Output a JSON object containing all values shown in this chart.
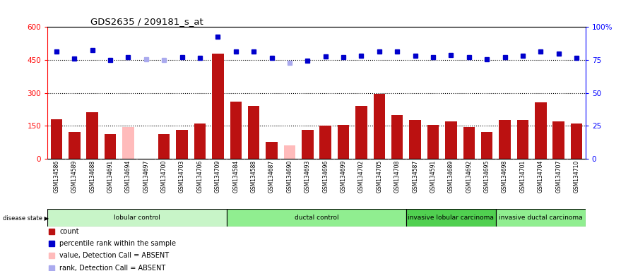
{
  "title": "GDS2635 / 209181_s_at",
  "samples": [
    "GSM134586",
    "GSM134589",
    "GSM134688",
    "GSM134691",
    "GSM134694",
    "GSM134697",
    "GSM134700",
    "GSM134703",
    "GSM134706",
    "GSM134709",
    "GSM134584",
    "GSM134588",
    "GSM134687",
    "GSM134690",
    "GSM134693",
    "GSM134696",
    "GSM134699",
    "GSM134702",
    "GSM134705",
    "GSM134708",
    "GSM134587",
    "GSM134591",
    "GSM134689",
    "GSM134692",
    "GSM134695",
    "GSM134698",
    "GSM134701",
    "GSM134704",
    "GSM134707",
    "GSM134710"
  ],
  "count_values": [
    180,
    120,
    210,
    110,
    145,
    0,
    110,
    130,
    160,
    480,
    260,
    240,
    75,
    60,
    130,
    150,
    155,
    240,
    295,
    200,
    175,
    155,
    170,
    145,
    120,
    175,
    175,
    255,
    170,
    160
  ],
  "absent_count_mask": [
    0,
    0,
    0,
    0,
    1,
    1,
    0,
    0,
    0,
    0,
    0,
    0,
    0,
    1,
    0,
    0,
    0,
    0,
    0,
    0,
    0,
    0,
    0,
    0,
    0,
    0,
    0,
    0,
    0,
    0
  ],
  "rank_values": [
    490,
    455,
    495,
    450,
    462,
    453,
    450,
    462,
    458,
    555,
    490,
    488,
    458,
    438,
    448,
    465,
    462,
    468,
    490,
    490,
    468,
    462,
    472,
    462,
    453,
    462,
    468,
    488,
    478,
    458
  ],
  "absent_rank_mask": [
    0,
    0,
    0,
    0,
    0,
    1,
    1,
    0,
    0,
    0,
    0,
    0,
    0,
    1,
    0,
    0,
    0,
    0,
    0,
    0,
    0,
    0,
    0,
    0,
    0,
    0,
    0,
    0,
    0,
    0
  ],
  "groups": [
    {
      "label": "lobular control",
      "start": 0,
      "end": 10,
      "color": "#c8f5c8"
    },
    {
      "label": "ductal control",
      "start": 10,
      "end": 20,
      "color": "#90ee90"
    },
    {
      "label": "invasive lobular carcinoma",
      "start": 20,
      "end": 25,
      "color": "#50d050"
    },
    {
      "label": "invasive ductal carcinoma",
      "start": 25,
      "end": 30,
      "color": "#90ee90"
    }
  ],
  "ylim_left": [
    0,
    600
  ],
  "ylim_right": [
    0,
    100
  ],
  "yticks_left": [
    0,
    150,
    300,
    450,
    600
  ],
  "yticks_right": [
    0,
    25,
    50,
    75,
    100
  ],
  "ytick_labels_right": [
    "0",
    "25",
    "50",
    "75",
    "100%"
  ],
  "hlines": [
    150,
    300,
    450
  ],
  "bar_color_present": "#bb1111",
  "bar_color_absent": "#ffbbbb",
  "dot_color_present": "#0000cc",
  "dot_color_absent": "#aaaaee",
  "bg_color": "#ffffff",
  "plot_bg": "#ffffff",
  "label_bg": "#cccccc"
}
